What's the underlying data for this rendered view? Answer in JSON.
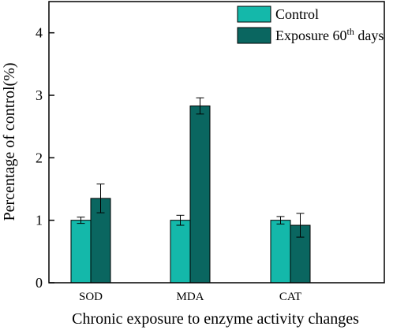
{
  "chart_data": {
    "type": "bar",
    "categories": [
      "SOD",
      "MDA",
      "CAT"
    ],
    "series": [
      {
        "name": "Control",
        "color": "#14b8aa",
        "values": [
          1.0,
          1.0,
          1.0
        ],
        "errors": [
          0.05,
          0.08,
          0.06
        ]
      },
      {
        "name": "Exposure 60th days",
        "color": "#0a6660",
        "values": [
          1.35,
          2.83,
          0.92
        ],
        "errors": [
          0.23,
          0.13,
          0.19
        ]
      }
    ],
    "xlabel": "Chronic exposure to enzyme activity changes",
    "ylabel": "Percentage of control(%)",
    "ylim": [
      0,
      4.5
    ],
    "yticks": [
      0,
      1,
      2,
      3,
      4
    ],
    "grid": false,
    "legend": {
      "placement": "top-right",
      "entries": [
        {
          "label": "Control"
        },
        {
          "label": "Exposure 60",
          "sup": "th",
          "suffix": " days"
        }
      ]
    }
  }
}
